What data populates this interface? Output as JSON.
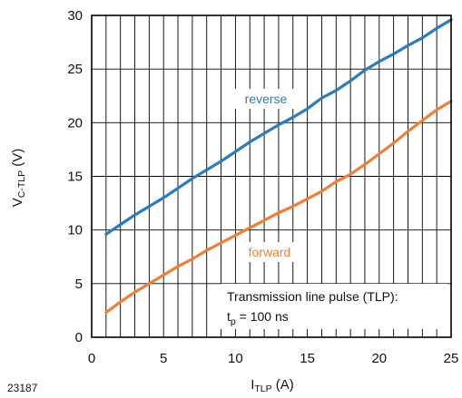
{
  "figure_id": "23187",
  "chart_data": {
    "type": "line",
    "xlabel": {
      "main": "I",
      "sub": "TLP",
      "unit": " (A)"
    },
    "ylabel": {
      "main": "V",
      "sub": "C-TLP",
      "unit": " (V)"
    },
    "xlim": [
      0,
      25
    ],
    "ylim": [
      0,
      30
    ],
    "xticks": [
      "0",
      "5",
      "10",
      "15",
      "20",
      "25"
    ],
    "yticks": [
      "0",
      "5",
      "10",
      "15",
      "20",
      "25",
      "30"
    ],
    "grid": true,
    "note": {
      "line1": "Transmission line pulse (TLP):",
      "line2_main": "t",
      "line2_sub": "p",
      "line2_rest": " = 100 ns"
    },
    "series": [
      {
        "name": "reverse",
        "color": "#2b7bbf",
        "x": [
          1,
          2,
          3,
          4,
          5,
          6,
          7,
          8,
          9,
          10,
          11,
          12,
          13,
          14,
          15,
          16,
          17,
          18,
          19,
          20,
          21,
          22,
          23,
          24,
          25
        ],
        "y": [
          9.6,
          10.5,
          11.4,
          12.2,
          13.0,
          13.9,
          14.8,
          15.6,
          16.4,
          17.3,
          18.2,
          19.0,
          19.8,
          20.5,
          21.3,
          22.3,
          23.0,
          23.9,
          24.9,
          25.7,
          26.4,
          27.2,
          27.9,
          28.8,
          29.6
        ]
      },
      {
        "name": "forward",
        "color": "#f07f34",
        "x": [
          1,
          2,
          3,
          4,
          5,
          6,
          7,
          8,
          9,
          10,
          11,
          12,
          13,
          14,
          15,
          16,
          17,
          18,
          19,
          20,
          21,
          22,
          23,
          24,
          25
        ],
        "y": [
          2.3,
          3.3,
          4.2,
          5.0,
          5.8,
          6.6,
          7.3,
          8.1,
          8.8,
          9.5,
          10.2,
          10.9,
          11.6,
          12.2,
          12.9,
          13.6,
          14.5,
          15.2,
          16.1,
          17.1,
          18.1,
          19.2,
          20.2,
          21.2,
          22.0
        ]
      }
    ]
  }
}
